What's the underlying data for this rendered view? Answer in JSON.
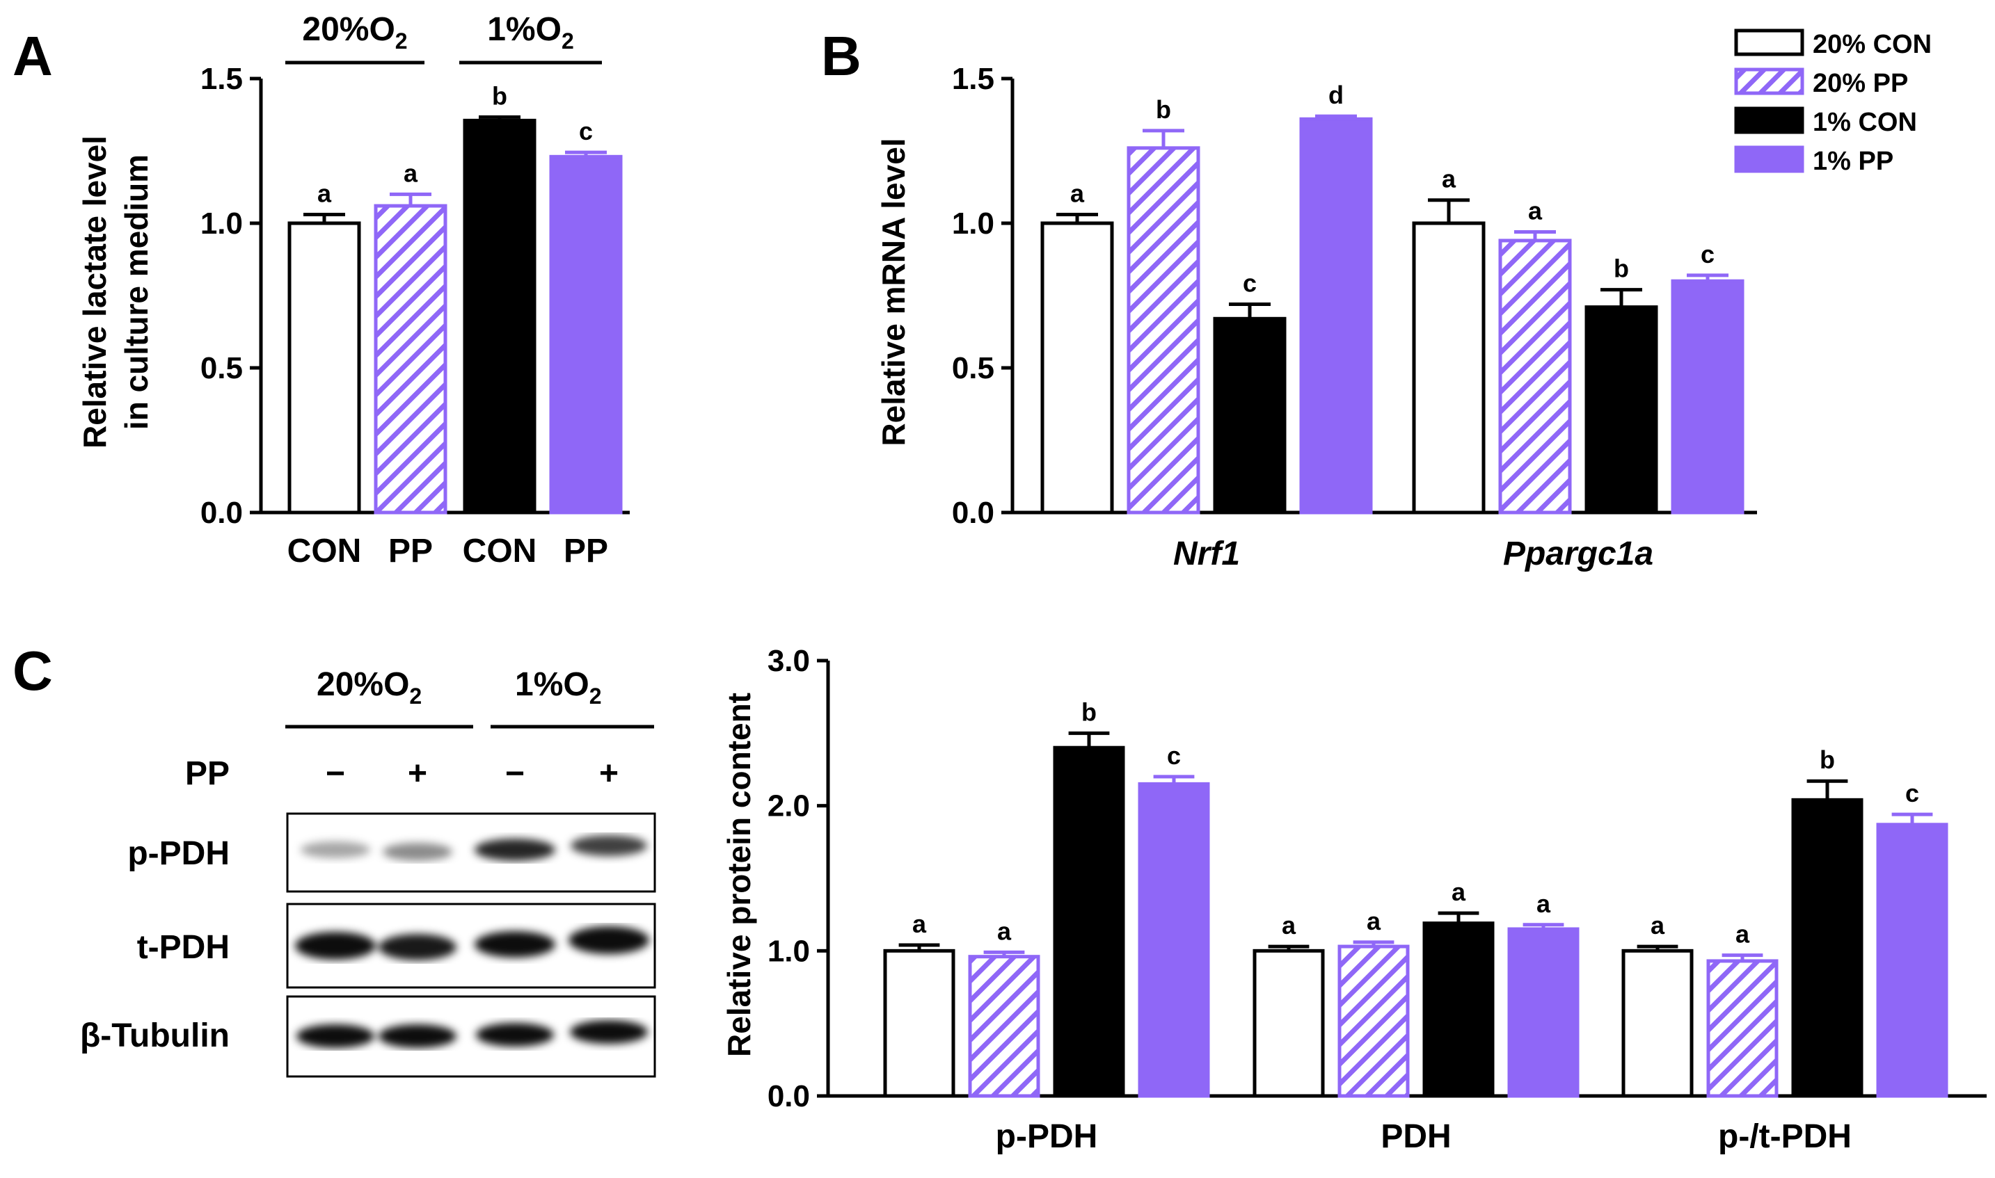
{
  "colors": {
    "black": "#000000",
    "purple": "#8f67f7",
    "white": "#ffffff"
  },
  "panels": {
    "a_label": "A",
    "b_label": "B",
    "c_label": "C"
  },
  "legend": [
    {
      "label": "20% CON",
      "style": "open"
    },
    {
      "label": "20% PP",
      "style": "hatch"
    },
    {
      "label": "1% CON",
      "style": "black"
    },
    {
      "label": "1% PP",
      "style": "purple"
    }
  ],
  "blot": {
    "group1": "20%O",
    "group1_sub": "2",
    "group2": "1%O",
    "group2_sub": "2",
    "treatment_label": "PP",
    "signs": [
      "−",
      "+",
      "−",
      "+"
    ],
    "rows": [
      "p-PDH",
      "t-PDH",
      "β-Tubulin"
    ]
  },
  "chart_data": [
    {
      "id": "A",
      "type": "bar",
      "ylabel_line1": "Relative lactate level",
      "ylabel_line2": "in culture medium",
      "ylim": [
        0,
        1.5
      ],
      "yticks": [
        "0.0",
        "0.5",
        "1.0",
        "1.5"
      ],
      "groups": [
        {
          "label": "20%O",
          "sub": "2"
        },
        {
          "label": "1%O",
          "sub": "2"
        }
      ],
      "categories": [
        "CON",
        "PP",
        "CON",
        "PP"
      ],
      "bars": [
        {
          "value": 1.0,
          "err": 0.03,
          "style": "open",
          "sig": "a"
        },
        {
          "value": 1.06,
          "err": 0.04,
          "style": "hatch",
          "sig": "a"
        },
        {
          "value": 1.355,
          "err": 0.012,
          "style": "black",
          "sig": "b"
        },
        {
          "value": 1.23,
          "err": 0.015,
          "style": "purple",
          "sig": "c"
        }
      ]
    },
    {
      "id": "B",
      "type": "bar",
      "ylabel": "Relative mRNA level",
      "ylim": [
        0,
        1.5
      ],
      "yticks": [
        "0.0",
        "0.5",
        "1.0",
        "1.5"
      ],
      "categories": [
        "Nrf1",
        "Ppargc1a"
      ],
      "series": [
        {
          "name": "20% CON",
          "style": "open",
          "values": [
            1.0,
            1.0
          ],
          "errs": [
            0.03,
            0.08
          ],
          "sig": [
            "a",
            "a"
          ]
        },
        {
          "name": "20% PP",
          "style": "hatch",
          "values": [
            1.26,
            0.94
          ],
          "errs": [
            0.06,
            0.03
          ],
          "sig": [
            "b",
            "a"
          ]
        },
        {
          "name": "1% CON",
          "style": "black",
          "values": [
            0.67,
            0.71
          ],
          "errs": [
            0.05,
            0.06
          ],
          "sig": [
            "c",
            "b"
          ]
        },
        {
          "name": "1% PP",
          "style": "purple",
          "values": [
            1.36,
            0.8
          ],
          "errs": [
            0.01,
            0.02
          ],
          "sig": [
            "d",
            "c"
          ]
        }
      ]
    },
    {
      "id": "C",
      "type": "bar",
      "ylabel": "Relative protein content",
      "ylim": [
        0,
        3.0
      ],
      "yticks": [
        "0.0",
        "1.0",
        "2.0",
        "3.0"
      ],
      "categories": [
        "p-PDH",
        "PDH",
        "p-/t-PDH"
      ],
      "series": [
        {
          "name": "20% CON",
          "style": "open",
          "values": [
            1.0,
            1.0,
            1.0
          ],
          "errs": [
            0.04,
            0.03,
            0.03
          ],
          "sig": [
            "a",
            "a",
            "a"
          ]
        },
        {
          "name": "20% PP",
          "style": "hatch",
          "values": [
            0.96,
            1.03,
            0.93
          ],
          "errs": [
            0.03,
            0.03,
            0.04
          ],
          "sig": [
            "a",
            "a",
            "a"
          ]
        },
        {
          "name": "1% CON",
          "style": "black",
          "values": [
            2.4,
            1.19,
            2.04
          ],
          "errs": [
            0.1,
            0.07,
            0.13
          ],
          "sig": [
            "b",
            "a",
            "b"
          ]
        },
        {
          "name": "1% PP",
          "style": "purple",
          "values": [
            2.15,
            1.15,
            1.87
          ],
          "errs": [
            0.05,
            0.03,
            0.07
          ],
          "sig": [
            "c",
            "a",
            "c"
          ]
        }
      ]
    }
  ]
}
